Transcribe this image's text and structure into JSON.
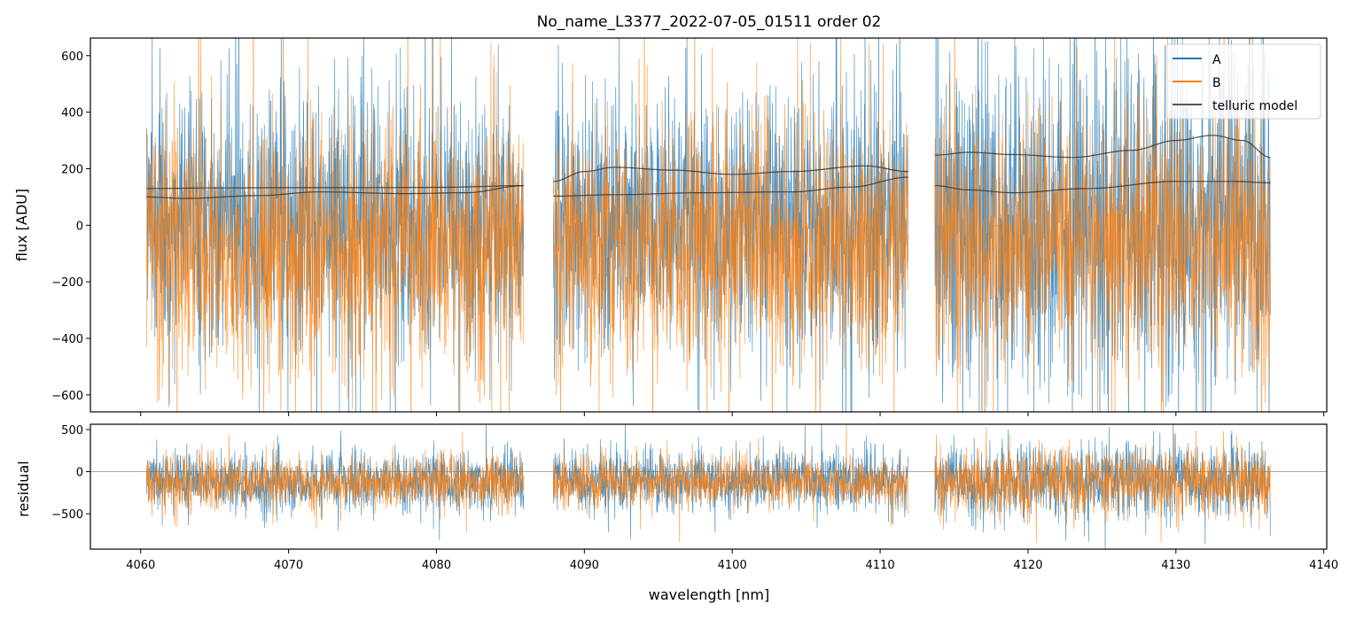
{
  "chart_data": [
    {
      "type": "line",
      "title": "No_name_L3377_2022-07-05_01511  order 02",
      "xlabel": "",
      "ylabel": "flux [ADU]",
      "xlim": [
        4056.6,
        4140.2
      ],
      "ylim": [
        -660,
        662
      ],
      "yticks": [
        600,
        400,
        200,
        0,
        -200,
        -400,
        -600
      ],
      "ytick_labels": [
        "600",
        "400",
        "200",
        "0",
        "−200",
        "−400",
        "−600"
      ],
      "segments": [
        [
          4060.4,
          4085.9
        ],
        [
          4087.9,
          4111.9
        ],
        [
          4113.7,
          4136.4
        ]
      ],
      "legend": {
        "placement": "top-right",
        "entries": [
          "A",
          "B",
          "telluric model"
        ]
      },
      "series": [
        {
          "name": "A",
          "color": "#1f77b4",
          "noise": {
            "mean": 10,
            "sigma": 230,
            "seed": 7
          }
        },
        {
          "name": "B",
          "color": "#ff7f0e",
          "noise": {
            "mean": -70,
            "sigma": 220,
            "seed": 13
          }
        }
      ],
      "telluric_model": {
        "color": "#333333",
        "curves": [
          {
            "x": [
              4060.4,
              4065,
              4070,
              4075,
              4080,
              4085.9
            ],
            "y": [
              130,
              132,
              133,
              133,
              134,
              140
            ]
          },
          {
            "x": [
              4060.4,
              4063,
              4068,
              4072,
              4078,
              4082,
              4085.9
            ],
            "y": [
              100,
              95,
              105,
              118,
              112,
              115,
              140
            ]
          },
          {
            "x": [
              4087.9,
              4090,
              4092,
              4096,
              4100,
              4104,
              4109,
              4111.9
            ],
            "y": [
              155,
              190,
              205,
              195,
              180,
              190,
              210,
              190
            ]
          },
          {
            "x": [
              4087.9,
              4092,
              4098,
              4104,
              4108,
              4111.9
            ],
            "y": [
              103,
              108,
              115,
              118,
              135,
              170
            ]
          },
          {
            "x": [
              4113.7,
              4116,
              4119,
              4123,
              4127,
              4130,
              4132.5,
              4134.5,
              4136.4
            ],
            "y": [
              248,
              258,
              250,
              240,
              265,
              300,
              318,
              300,
              240
            ]
          },
          {
            "x": [
              4113.7,
              4116,
              4119,
              4124,
              4130,
              4134,
              4136.4
            ],
            "y": [
              140,
              125,
              115,
              130,
              155,
              155,
              150
            ]
          }
        ]
      }
    },
    {
      "type": "line",
      "xlabel": "wavelength [nm]",
      "ylabel": "residual",
      "xlim": [
        4056.6,
        4140.2
      ],
      "ylim": [
        -920,
        563
      ],
      "xticks": [
        4060,
        4070,
        4080,
        4090,
        4100,
        4110,
        4120,
        4130,
        4140
      ],
      "xtick_labels": [
        "4060",
        "4070",
        "4080",
        "4090",
        "4100",
        "4110",
        "4120",
        "4130",
        "4140"
      ],
      "yticks": [
        500,
        0,
        -500
      ],
      "ytick_labels": [
        "500",
        "0",
        "−500"
      ],
      "zero_line": 0,
      "series": [
        {
          "name": "A",
          "color": "#1f77b4",
          "noise": {
            "mean": -110,
            "sigma": 170,
            "seed": 21
          }
        },
        {
          "name": "B",
          "color": "#ff7f0e",
          "noise": {
            "mean": -130,
            "sigma": 150,
            "seed": 29
          }
        }
      ]
    }
  ]
}
